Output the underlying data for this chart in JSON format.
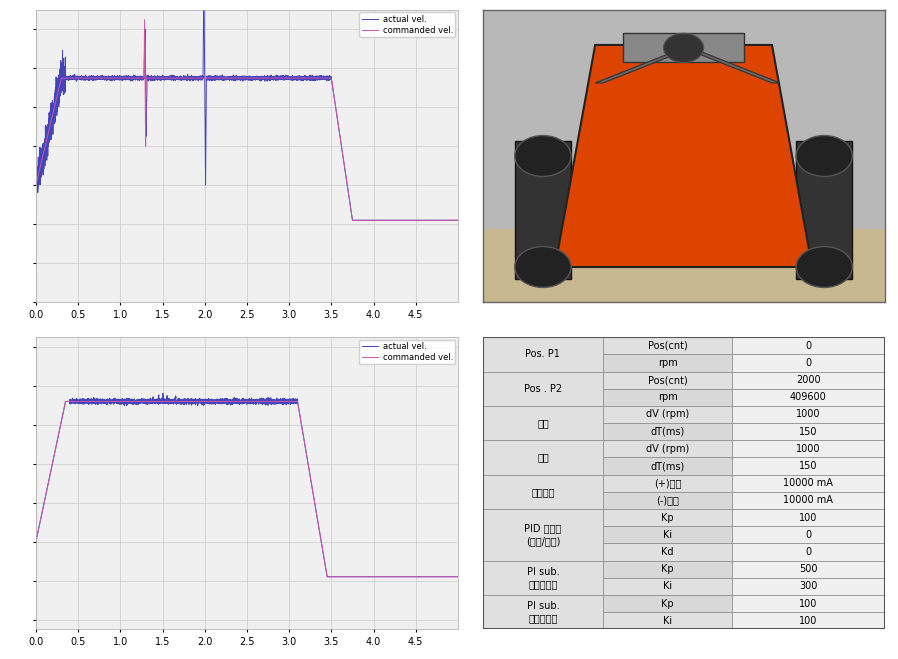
{
  "legend_actual": "actual vel.",
  "legend_commanded": "commanded vel.",
  "actual_color": "#4444bb",
  "commanded_color": "#cc55aa",
  "xlim": [
    0,
    5
  ],
  "xticks": [
    0,
    0.5,
    1,
    1.5,
    2,
    2.5,
    3,
    3.5,
    4,
    4.5
  ],
  "bg_color": "#f0f0f0",
  "grid_color": "#cccccc",
  "table_col0_bg": "#e0e0e0",
  "table_col1_bg": "#d8d8d8",
  "table_col2_bg": "#f0f0f0",
  "table_border": "#888888",
  "merge_groups": [
    [
      0,
      2,
      "Pos. P1"
    ],
    [
      2,
      4,
      "Pos . P2"
    ],
    [
      4,
      6,
      "가속"
    ],
    [
      6,
      8,
      "감속"
    ],
    [
      8,
      10,
      "전류제한"
    ],
    [
      10,
      13,
      "PID 제어기\n(위치/속도)"
    ],
    [
      13,
      15,
      "PI sub.\n속도제어기"
    ],
    [
      15,
      17,
      "PI sub.\n전류제어기"
    ]
  ],
  "table_rows": [
    [
      "Pos(cnt)",
      "0"
    ],
    [
      "rpm",
      "0"
    ],
    [
      "Pos(cnt)",
      "2000"
    ],
    [
      "rpm",
      "409600"
    ],
    [
      "dV (rpm)",
      "1000"
    ],
    [
      "dT(ms)",
      "150"
    ],
    [
      "dV (rpm)",
      "1000"
    ],
    [
      "dT(ms)",
      "150"
    ],
    [
      "(+)방향",
      "10000 mA"
    ],
    [
      "(-)방향",
      "10000 mA"
    ],
    [
      "Kp",
      "100"
    ],
    [
      "Ki",
      "0"
    ],
    [
      "Kd",
      "0"
    ],
    [
      "Kp",
      "500"
    ],
    [
      "Ki",
      "300"
    ],
    [
      "Kp",
      "100"
    ],
    [
      "Ki",
      "100"
    ]
  ]
}
